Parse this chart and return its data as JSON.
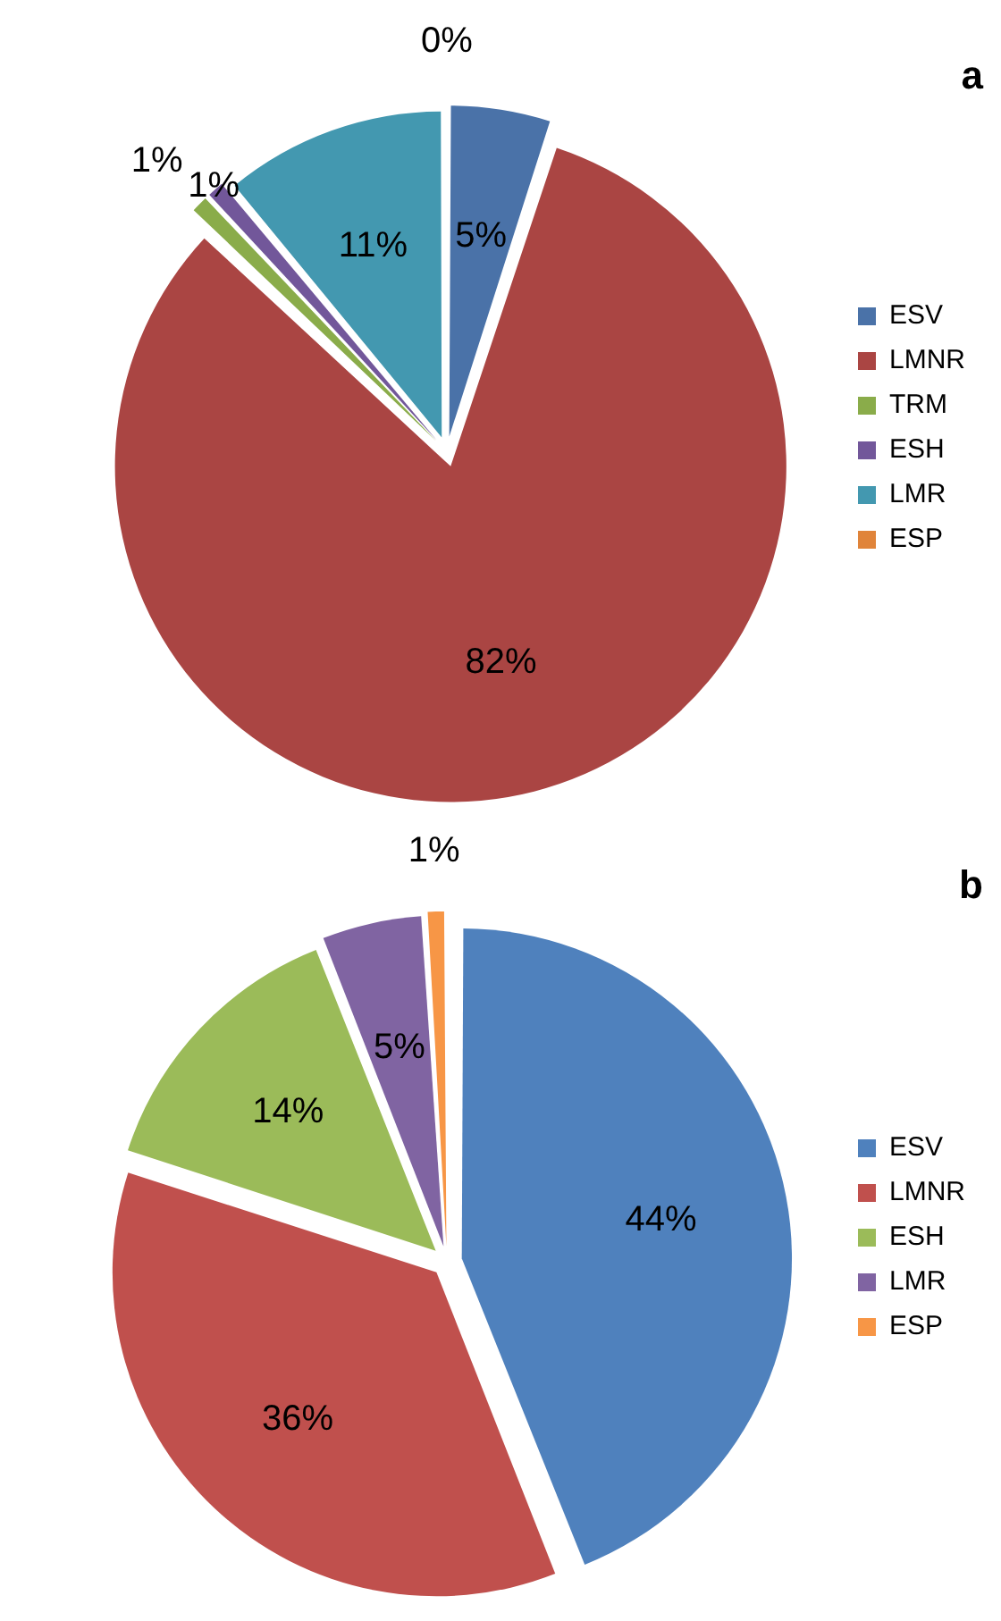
{
  "chart_data": [
    {
      "type": "pie",
      "title": "a",
      "categories": [
        "ESV",
        "LMNR",
        "TRM",
        "ESH",
        "LMR",
        "ESP"
      ],
      "values": [
        5,
        82,
        1,
        1,
        11,
        0
      ],
      "colors": [
        "#4a72a8",
        "#aa4543",
        "#8aac4a",
        "#72579a",
        "#4398b0",
        "#e0843a"
      ],
      "value_labels": [
        "5%",
        "82%",
        "1%",
        "1%",
        "11%",
        "0%"
      ],
      "legend": "right"
    },
    {
      "type": "pie",
      "title": "b",
      "categories": [
        "ESV",
        "LMNR",
        "ESH",
        "LMR",
        "ESP"
      ],
      "values": [
        44,
        36,
        14,
        5,
        1
      ],
      "colors": [
        "#4f81bd",
        "#c0504d",
        "#9bbb59",
        "#8064a2",
        "#f79646"
      ],
      "value_labels": [
        "44%",
        "36%",
        "14%",
        "5%",
        "1%"
      ],
      "legend": "right"
    }
  ]
}
